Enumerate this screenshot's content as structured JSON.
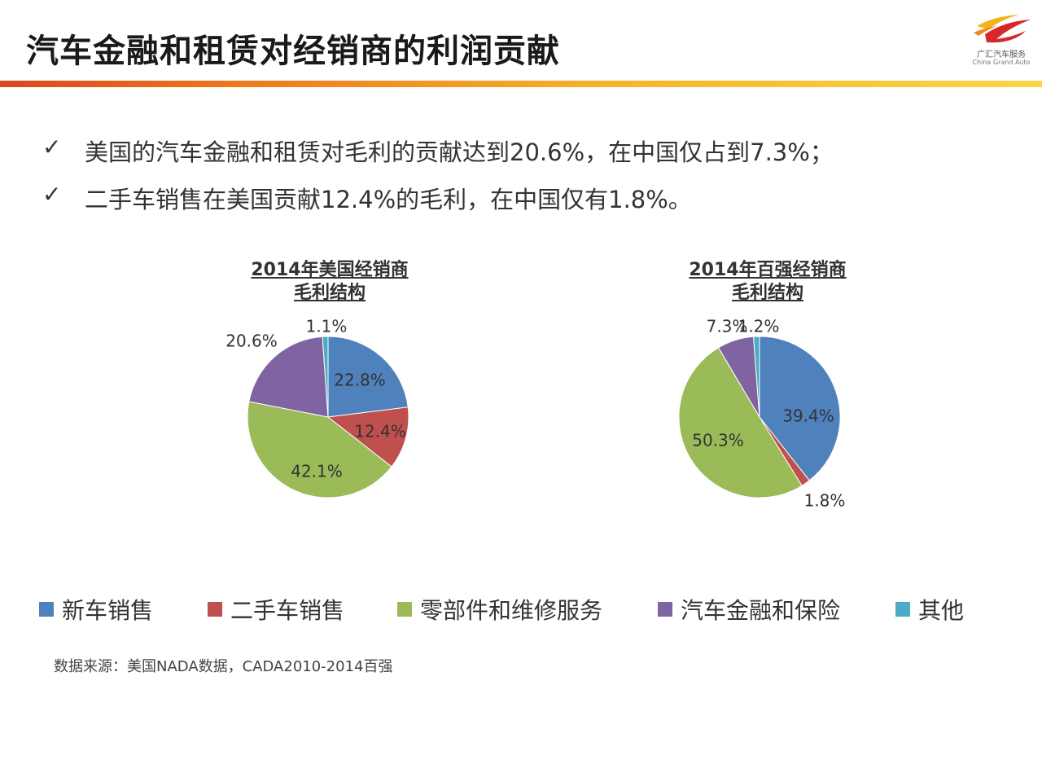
{
  "slide": {
    "title": "汽车金融和租赁对经销商的利润贡献",
    "logo": {
      "text_cn": "广汇汽车服务",
      "text_en": "China Grand Auto"
    },
    "bullets": [
      {
        "mark": "✓",
        "text": "美国的汽车金融和租赁对毛利的贡献达到20.6%，在中国仅占到7.3%；"
      },
      {
        "mark": "✓",
        "text": "二手车销售在美国贡献12.4%的毛利，在中国仅有1.8%。"
      }
    ],
    "source": "数据来源：美国NADA数据，CADA2010-2014百强"
  },
  "legend": [
    {
      "label": "新车销售",
      "color": "#4f81bd"
    },
    {
      "label": "二手车销售",
      "color": "#c0504d"
    },
    {
      "label": "零部件和维修服务",
      "color": "#9bbb59"
    },
    {
      "label": "汽车金融和保险",
      "color": "#8064a2"
    },
    {
      "label": "其他",
      "color": "#4bacc6"
    }
  ],
  "chart_data": [
    {
      "type": "pie",
      "title_line1": "2014年美国经销商",
      "title_line2": "毛利结构",
      "categories": [
        "新车销售",
        "二手车销售",
        "零部件和维修服务",
        "汽车金融和保险",
        "其他"
      ],
      "values": [
        22.8,
        12.4,
        42.1,
        20.6,
        1.1
      ],
      "labels": [
        "22.8%",
        "12.4%",
        "42.1%",
        "20.6%",
        "1.1%"
      ],
      "colors": [
        "#4f81bd",
        "#c0504d",
        "#9bbb59",
        "#8064a2",
        "#4bacc6"
      ],
      "unit": "%"
    },
    {
      "type": "pie",
      "title_line1": "2014年百强经销商",
      "title_line2": "毛利结构",
      "categories": [
        "新车销售",
        "二手车销售",
        "零部件和维修服务",
        "汽车金融和保险",
        "其他"
      ],
      "values": [
        39.4,
        1.8,
        50.3,
        7.3,
        1.2
      ],
      "labels": [
        "39.4%",
        "1.8%",
        "50.3%",
        "7.3%",
        "1.2%"
      ],
      "colors": [
        "#4f81bd",
        "#c0504d",
        "#9bbb59",
        "#8064a2",
        "#4bacc6"
      ],
      "unit": "%"
    }
  ]
}
